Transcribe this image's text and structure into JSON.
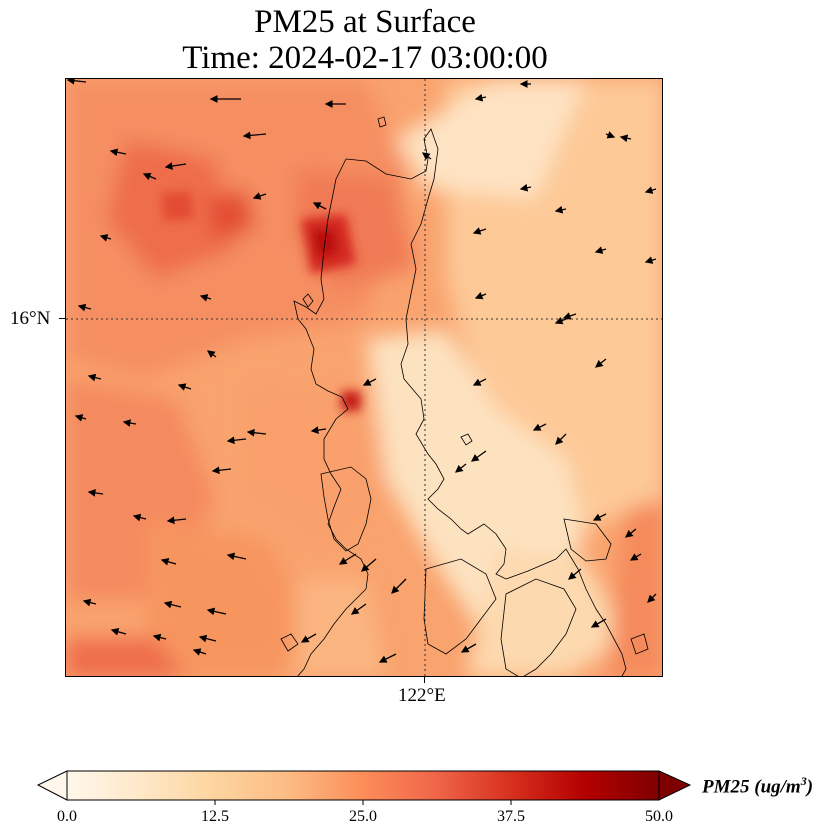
{
  "title": {
    "line1": "PM25 at Surface",
    "line2": "Time: 2024-02-17 03:00:00"
  },
  "map": {
    "lat_tick_label": "16°N",
    "lon_tick_label": "122°E",
    "gridline_style": "dotted"
  },
  "colorbar": {
    "label_prefix": "PM25 (ug/m",
    "label_exp": "3",
    "label_suffix": ")",
    "min": 0.0,
    "max": 50.0,
    "extend": "both",
    "ticks": [
      "0.0",
      "12.5",
      "25.0",
      "37.5",
      "50.0"
    ],
    "colormap": "OrRd",
    "colors": [
      "#fff7ec",
      "#fee8c8",
      "#fdd49e",
      "#fdbb84",
      "#fc8d59",
      "#ef6548",
      "#d7301f",
      "#b30000",
      "#7f0000"
    ]
  }
}
